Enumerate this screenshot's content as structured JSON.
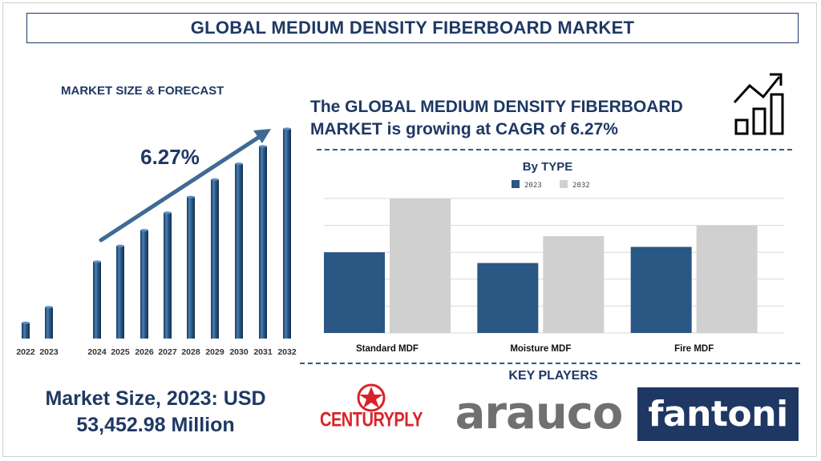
{
  "header": {
    "title": "GLOBAL MEDIUM DENSITY FIBERBOARD MARKET"
  },
  "forecast_panel": {
    "title": "MARKET SIZE & FORECAST",
    "cagr_label": "6.27%"
  },
  "headline": "The GLOBAL MEDIUM DENSITY FIBERBOARD MARKET is growing at CAGR of 6.27%",
  "market_size": {
    "line1": "Market Size, 2023: USD",
    "line2": "53,452.98 Million"
  },
  "key_players": {
    "title": "KEY PLAYERS",
    "logos": [
      "CENTURYPLY",
      "arauco",
      "fantoni"
    ]
  },
  "colors": {
    "navy": "#1f3864",
    "bar_dark": "#2a5783",
    "bar_light": "#d0d0d0",
    "logo_red": "#d8232a"
  },
  "icons": [
    "growth-chart-icon",
    "trend-arrow-icon",
    "centuryply-star-icon"
  ],
  "chart_data": [
    {
      "type": "bar",
      "title": "MARKET SIZE & FORECAST",
      "categories": [
        "2022",
        "2023",
        "2024",
        "2025",
        "2026",
        "2027",
        "2028",
        "2029",
        "2030",
        "2031",
        "2032"
      ],
      "values": [
        9,
        18,
        44,
        53,
        62,
        72,
        81,
        91,
        100,
        110,
        120
      ],
      "ylim": [
        0,
        125
      ],
      "grid": false,
      "annotation": "6.27%"
    },
    {
      "type": "bar",
      "title": "By TYPE",
      "categories": [
        "Standard MDF",
        "Moisture MDF",
        "Fire MDF"
      ],
      "series": [
        {
          "name": "2023",
          "values": [
            30,
            26,
            32
          ]
        },
        {
          "name": "2032",
          "values": [
            50,
            36,
            40
          ]
        }
      ],
      "ylim": [
        0,
        50
      ],
      "grid": true,
      "legend": "top-center"
    }
  ]
}
